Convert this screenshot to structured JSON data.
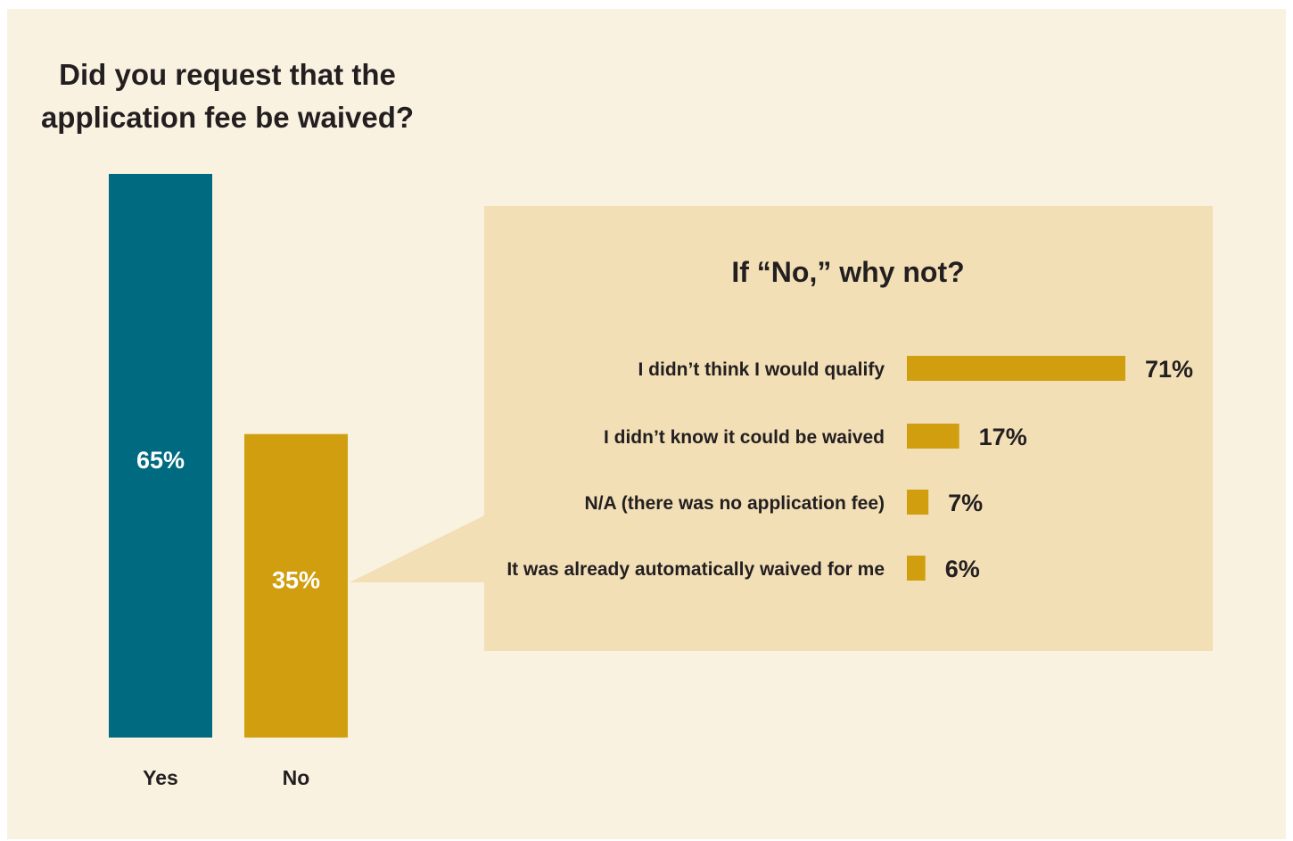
{
  "colors": {
    "background": "#faf2e1",
    "callout": "#f2dfb6",
    "teal": "#006b80",
    "gold": "#d19e10",
    "text": "#231f20",
    "inbar_text": "#ffffff"
  },
  "chart_data": [
    {
      "type": "bar",
      "title_lines": [
        "Did you request that the",
        "application fee be waived?"
      ],
      "categories": [
        "Yes",
        "No"
      ],
      "values": [
        65,
        35
      ],
      "value_labels": [
        "65%",
        "35%"
      ],
      "bar_colors": [
        "#006b80",
        "#d19e10"
      ],
      "ylim": [
        0,
        65
      ],
      "grid": false
    },
    {
      "type": "bar",
      "orientation": "horizontal",
      "title": "If “No,” why not?",
      "categories": [
        "I didn’t think I would qualify",
        "I didn’t know it could be waived",
        "N/A (there was no application fee)",
        "It was already automatically waived for me"
      ],
      "values": [
        71,
        17,
        7,
        6
      ],
      "value_labels": [
        "71%",
        "17%",
        "7%",
        "6%"
      ],
      "bar_color": "#d19e10",
      "xlim": [
        0,
        71
      ],
      "grid": false
    }
  ]
}
